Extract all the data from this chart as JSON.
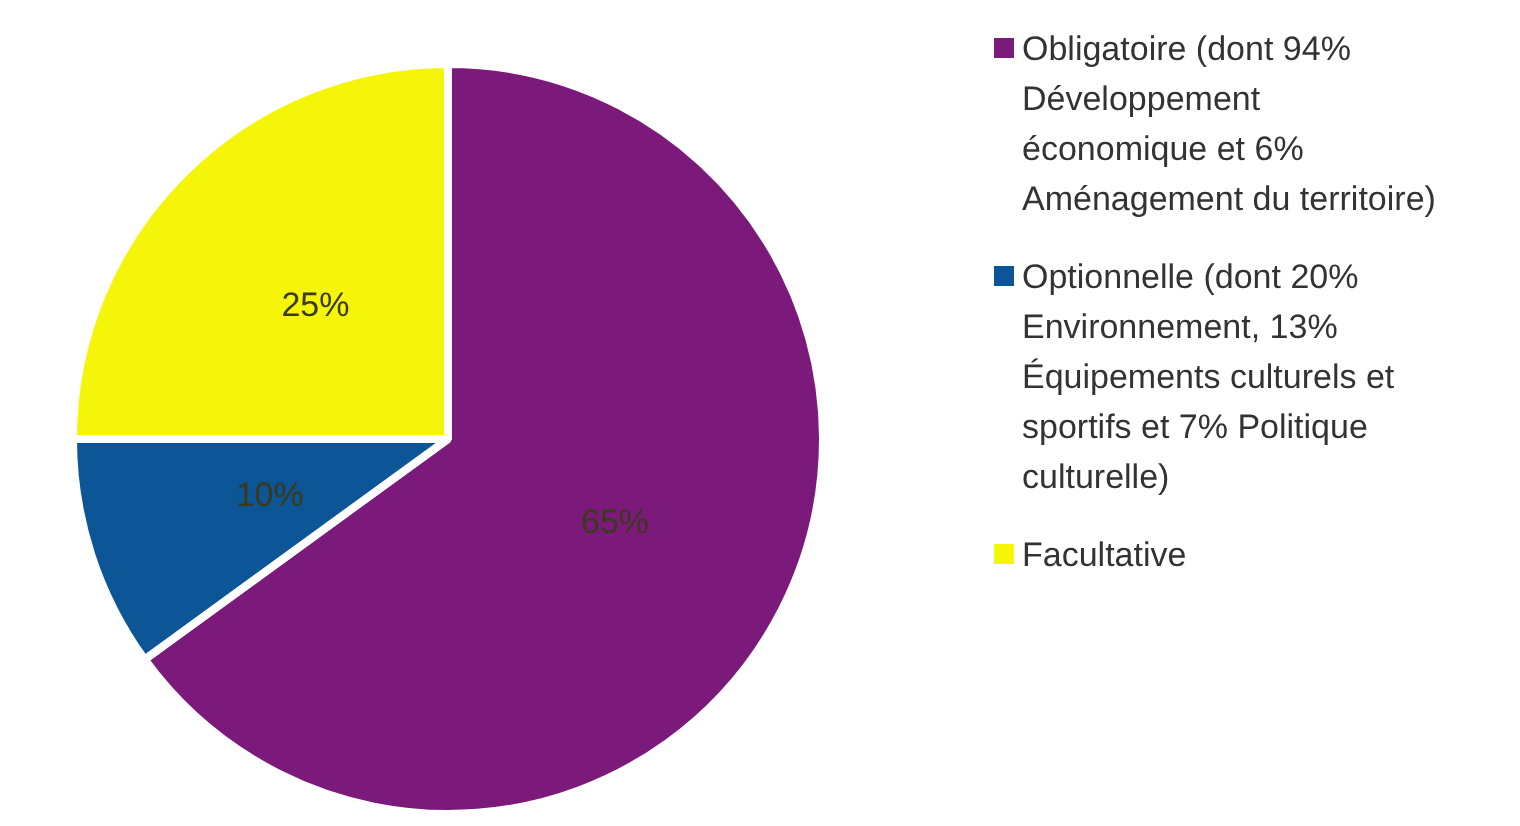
{
  "chart_data": {
    "type": "pie",
    "categories": [
      "Obligatoire (dont 94% Développement économique et 6% Aménagement du territoire)",
      "Optionnelle (dont 20% Environnement, 13% Équipements culturels et sportifs et 7% Politique culturelle)",
      "Facultative"
    ],
    "values": [
      65,
      10,
      25
    ],
    "colors": [
      "#7b1a7b",
      "#0c5596",
      "#f5f50a"
    ],
    "value_labels": [
      "65%",
      "10%",
      "25%"
    ],
    "legend": "right"
  }
}
